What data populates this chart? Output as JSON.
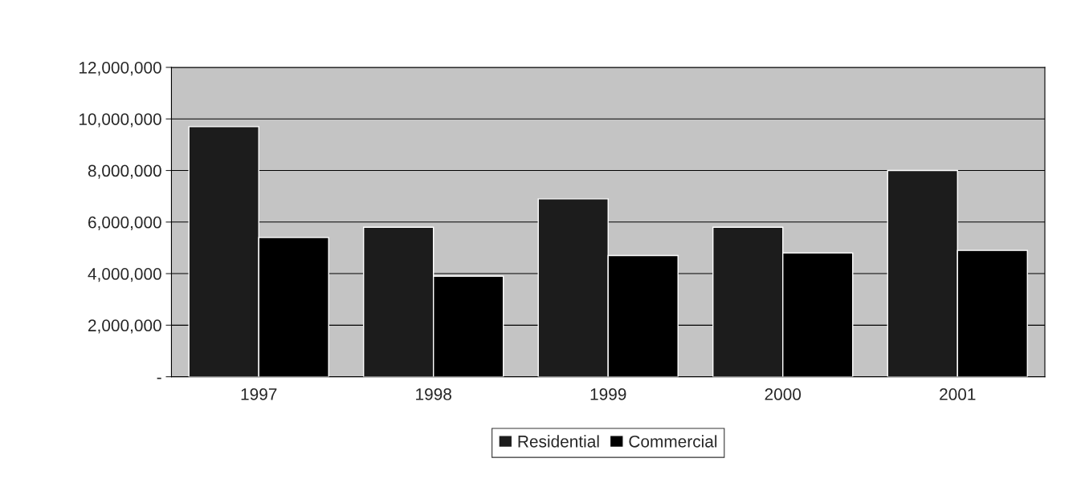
{
  "chart_data": {
    "type": "bar",
    "categories": [
      "1997",
      "1998",
      "1999",
      "2000",
      "2001"
    ],
    "series": [
      {
        "name": "Residential",
        "color": "#1c1c1c",
        "values": [
          9700000,
          5800000,
          6900000,
          5800000,
          8000000
        ]
      },
      {
        "name": "Commercial",
        "color": "#000000",
        "values": [
          5400000,
          3900000,
          4700000,
          4800000,
          4900000
        ]
      }
    ],
    "ylim": [
      0,
      12000000
    ],
    "yticks": [
      {
        "value": 0,
        "label": "-"
      },
      {
        "value": 2000000,
        "label": "2,000,000"
      },
      {
        "value": 4000000,
        "label": "4,000,000"
      },
      {
        "value": 6000000,
        "label": "6,000,000"
      },
      {
        "value": 8000000,
        "label": "8,000,000"
      },
      {
        "value": 10000000,
        "label": "10,000,000"
      },
      {
        "value": 12000000,
        "label": "12,000,000"
      }
    ],
    "grid": "y",
    "legend": "bottom"
  }
}
